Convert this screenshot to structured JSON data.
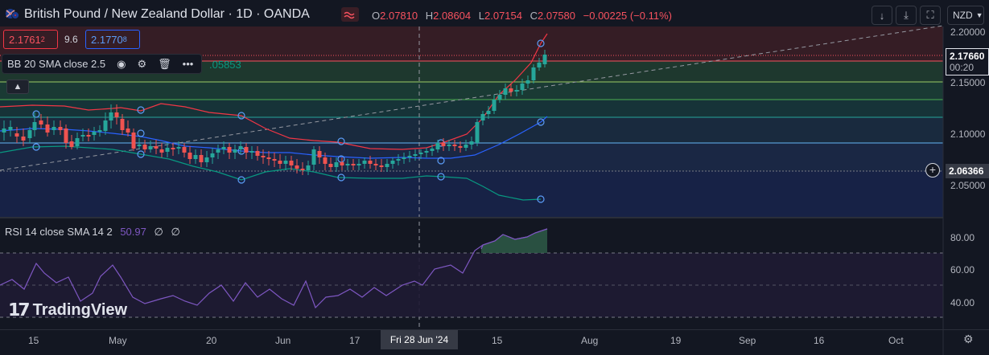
{
  "header": {
    "symbol_title": "British Pound / New Zealand Dollar · 1D · OANDA",
    "ohlc": {
      "o_label": "O",
      "o_value": "2.07810",
      "h_label": "H",
      "h_value": "2.08604",
      "l_label": "L",
      "l_value": "2.07154",
      "c_label": "C",
      "c_value": "2.07580",
      "change": "−0.00225 (−0.11%)"
    },
    "currency_button": "NZD"
  },
  "trade": {
    "sell_price_main": "2.1761",
    "sell_price_small": "2",
    "spread": "9.6",
    "buy_price_main": "2.1770",
    "buy_price_small": "8"
  },
  "indicators": {
    "bb_label": "BB 20 SMA close 2.5",
    "bb_value_partial": ".05853",
    "rsi_label": "RSI 14 close SMA 14 2",
    "rsi_value": "50.97",
    "rsi_na1": "∅",
    "rsi_na2": "∅"
  },
  "price_axis": {
    "labels": [
      "2.20000",
      "2.15000",
      "2.10000",
      "2.05000"
    ],
    "current_price": "2.17660",
    "countdown": "00:20",
    "crosshair_price": "2.06366"
  },
  "rsi_axis": {
    "labels": [
      "80.00",
      "60.00",
      "40.00"
    ]
  },
  "time_axis": {
    "labels": [
      "15",
      "May",
      "20",
      "Jun",
      "17",
      "15",
      "Aug",
      "19",
      "Sep",
      "16",
      "Oct"
    ],
    "crosshair_date": "Fri 28 Jun '24"
  },
  "branding": {
    "logo_text": "TradingView"
  },
  "icons": {
    "eye": "eye-icon",
    "settings": "gear-icon",
    "delete": "trash-icon",
    "more": "more-icon",
    "collapse": "chevron-up-icon",
    "plus": "plus-circle-icon"
  },
  "colors": {
    "background": "#131722",
    "up": "#26a69a",
    "down": "#ef5350",
    "bb_upper": "#f23645",
    "bb_basis": "#2962ff",
    "bb_lower": "#089981",
    "rsi": "#7e57c2"
  }
}
